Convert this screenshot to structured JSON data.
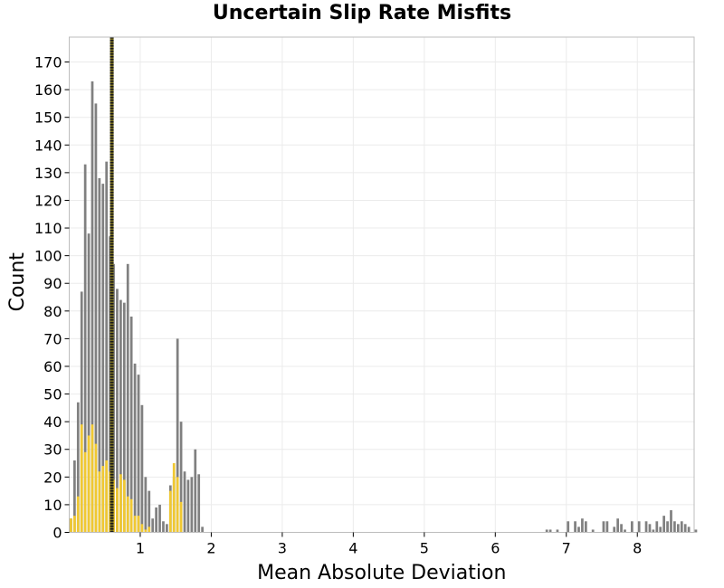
{
  "chart_data": {
    "type": "bar",
    "title": "Uncertain Slip Rate Misfits",
    "xlabel": "Mean Absolute Deviation",
    "ylabel": "Count",
    "xlim": [
      0.0,
      8.8
    ],
    "ylim": [
      0,
      179
    ],
    "xticks": [
      "1",
      "2",
      "3",
      "4",
      "5",
      "6",
      "7",
      "8"
    ],
    "yticks": [
      "0",
      "10",
      "20",
      "30",
      "40",
      "50",
      "60",
      "70",
      "80",
      "90",
      "100",
      "110",
      "120",
      "130",
      "140",
      "150",
      "160",
      "170"
    ],
    "grid": true,
    "bin_width": 0.05,
    "colors": {
      "all": "#808080",
      "subset": "#f0c832",
      "reference_line": "#7a7020",
      "grid": "#ebebeb",
      "frame": "#bdbdbd"
    },
    "reference_line_x": 0.6,
    "series": [
      {
        "bars": [
          [
            0.0,
            5
          ],
          [
            0.05,
            26
          ],
          [
            0.1,
            47
          ],
          [
            0.15,
            87
          ],
          [
            0.2,
            133
          ],
          [
            0.25,
            108
          ],
          [
            0.3,
            163
          ],
          [
            0.35,
            155
          ],
          [
            0.4,
            128
          ],
          [
            0.45,
            126
          ],
          [
            0.5,
            134
          ],
          [
            0.55,
            107
          ],
          [
            0.6,
            97
          ],
          [
            0.65,
            88
          ],
          [
            0.7,
            84
          ],
          [
            0.75,
            83
          ],
          [
            0.8,
            97
          ],
          [
            0.85,
            78
          ],
          [
            0.9,
            61
          ],
          [
            0.95,
            57
          ],
          [
            1.0,
            46
          ],
          [
            1.05,
            20
          ],
          [
            1.1,
            15
          ],
          [
            1.15,
            5
          ],
          [
            1.2,
            9
          ],
          [
            1.25,
            10
          ],
          [
            1.3,
            4
          ],
          [
            1.35,
            3
          ],
          [
            1.4,
            17
          ],
          [
            1.45,
            20
          ],
          [
            1.5,
            70
          ],
          [
            1.55,
            40
          ],
          [
            1.6,
            22
          ],
          [
            1.65,
            19
          ],
          [
            1.7,
            20
          ],
          [
            1.75,
            30
          ],
          [
            1.8,
            21
          ],
          [
            1.85,
            2
          ],
          [
            6.7,
            1
          ],
          [
            6.75,
            1
          ],
          [
            6.85,
            1
          ],
          [
            7.0,
            4
          ],
          [
            7.1,
            4
          ],
          [
            7.15,
            2
          ],
          [
            7.2,
            5
          ],
          [
            7.25,
            4
          ],
          [
            7.35,
            1
          ],
          [
            7.5,
            4
          ],
          [
            7.55,
            4
          ],
          [
            7.65,
            2
          ],
          [
            7.7,
            5
          ],
          [
            7.75,
            3
          ],
          [
            7.8,
            1
          ],
          [
            7.9,
            4
          ],
          [
            8.0,
            4
          ],
          [
            8.1,
            4
          ],
          [
            8.15,
            3
          ],
          [
            8.2,
            1
          ],
          [
            8.25,
            4
          ],
          [
            8.3,
            2
          ],
          [
            8.35,
            6
          ],
          [
            8.4,
            4
          ],
          [
            8.45,
            8
          ],
          [
            8.5,
            4
          ],
          [
            8.55,
            3
          ],
          [
            8.6,
            4
          ],
          [
            8.65,
            3
          ],
          [
            8.7,
            2
          ],
          [
            8.8,
            1
          ]
        ]
      },
      {
        "bars": [
          [
            0.0,
            5
          ],
          [
            0.05,
            6
          ],
          [
            0.1,
            13
          ],
          [
            0.15,
            39
          ],
          [
            0.2,
            29
          ],
          [
            0.25,
            35
          ],
          [
            0.3,
            39
          ],
          [
            0.35,
            32
          ],
          [
            0.4,
            22
          ],
          [
            0.45,
            24
          ],
          [
            0.5,
            26
          ],
          [
            0.55,
            22
          ],
          [
            0.6,
            19
          ],
          [
            0.65,
            16
          ],
          [
            0.7,
            21
          ],
          [
            0.75,
            19
          ],
          [
            0.8,
            13
          ],
          [
            0.85,
            12
          ],
          [
            0.9,
            6
          ],
          [
            0.95,
            6
          ],
          [
            1.0,
            3
          ],
          [
            1.05,
            1
          ],
          [
            1.1,
            2
          ],
          [
            1.4,
            15
          ],
          [
            1.45,
            25
          ],
          [
            1.5,
            20
          ],
          [
            1.55,
            11
          ]
        ]
      }
    ]
  }
}
